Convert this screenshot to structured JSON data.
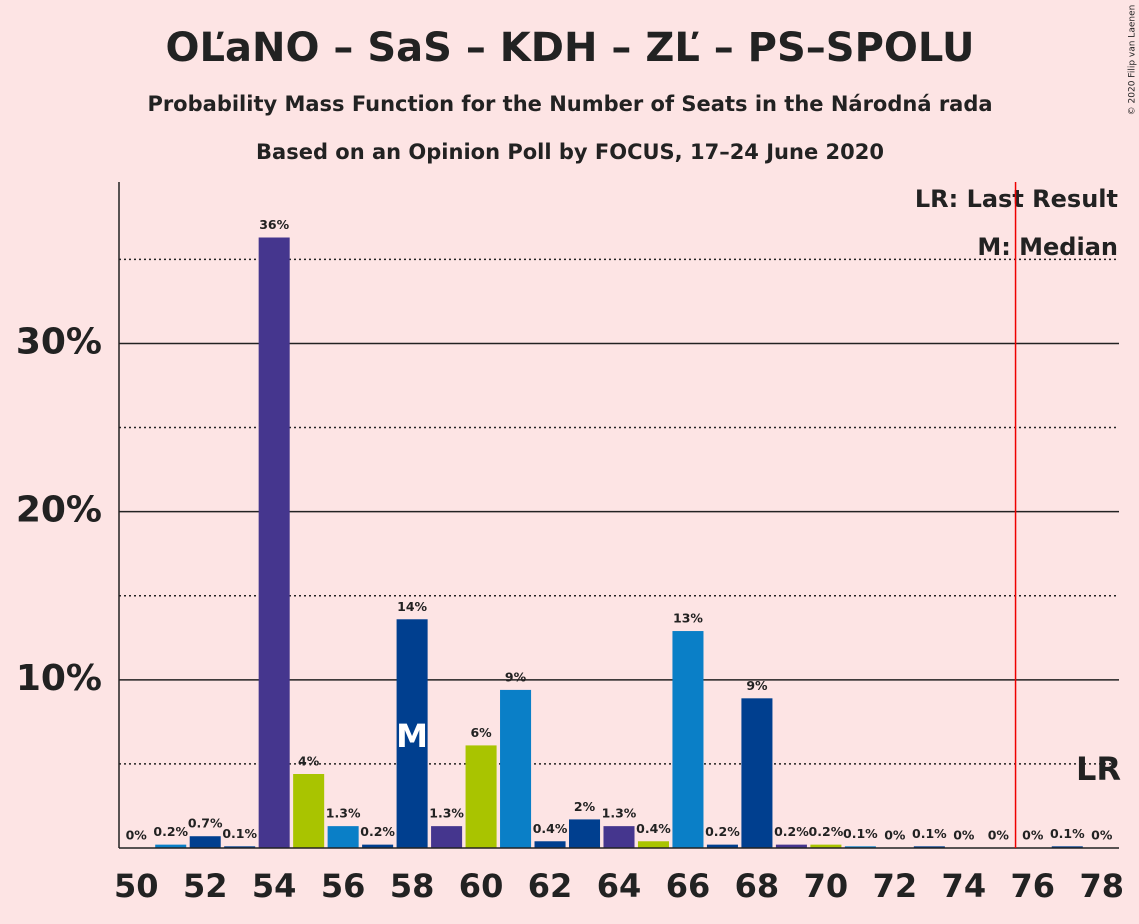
{
  "chart_data": {
    "type": "bar",
    "title": "OĽaNO – SaS – KDH – ZĽ – PS–SPOLU",
    "subtitles": [
      "Probability Mass Function for the Number of Seats in the Národná rada",
      "Based on an Opinion Poll by FOCUS, 17–24 June 2020"
    ],
    "x": [
      50,
      51,
      52,
      53,
      54,
      55,
      56,
      57,
      58,
      59,
      60,
      61,
      62,
      63,
      64,
      65,
      66,
      67,
      68,
      69,
      70,
      71,
      72,
      73,
      74,
      75,
      76,
      77,
      78
    ],
    "values": [
      0,
      0.2,
      0.7,
      0.1,
      36.3,
      4.4,
      1.3,
      0.2,
      13.6,
      1.3,
      6.1,
      9.4,
      0.4,
      1.7,
      1.3,
      0.4,
      12.9,
      0.2,
      8.9,
      0.2,
      0.2,
      0.1,
      0,
      0.1,
      0,
      0,
      0,
      0.1,
      0
    ],
    "value_labels": [
      "0%",
      "0.2%",
      "0.7%",
      "0.1%",
      "36%",
      "4%",
      "1.3%",
      "0.2%",
      "14%",
      "1.3%",
      "6%",
      "9%",
      "0.4%",
      "2%",
      "1.3%",
      "0.4%",
      "13%",
      "0.2%",
      "9%",
      "0.2%",
      "0.2%",
      "0.1%",
      "0%",
      "0.1%",
      "0%",
      "0%",
      "0%",
      "0.1%",
      "0%"
    ],
    "colors": [
      "#003f8f",
      "#0a7fc7",
      "#003f8f",
      "#003f8f",
      "#45368e",
      "#a9c400",
      "#0a7fc7",
      "#003f8f",
      "#003f8f",
      "#45368e",
      "#a9c400",
      "#0a7fc7",
      "#003f8f",
      "#003f8f",
      "#45368e",
      "#a9c400",
      "#0a7fc7",
      "#003f8f",
      "#003f8f",
      "#45368e",
      "#a9c400",
      "#0a7fc7",
      "#003f8f",
      "#003f8f",
      "#45368e",
      "#a9c400",
      "#0a7fc7",
      "#003f8f",
      "#003f8f"
    ],
    "xlim": [
      49.5,
      78.5
    ],
    "xticks": [
      50,
      52,
      54,
      56,
      58,
      60,
      62,
      64,
      66,
      68,
      70,
      72,
      74,
      76,
      78
    ],
    "ylim": [
      0,
      39.6
    ],
    "yticks": [
      {
        "value": 10,
        "label": "10%"
      },
      {
        "value": 20,
        "label": "20%"
      },
      {
        "value": 30,
        "label": "30%"
      }
    ],
    "minor_yticks": [
      5,
      15,
      25,
      35
    ],
    "median": 58,
    "median_label": "M",
    "last_result": 75.5,
    "last_result_label": "LR",
    "legend": [
      "LR: Last Result",
      "M: Median"
    ],
    "copyright": "© 2020 Filip van Laenen"
  }
}
